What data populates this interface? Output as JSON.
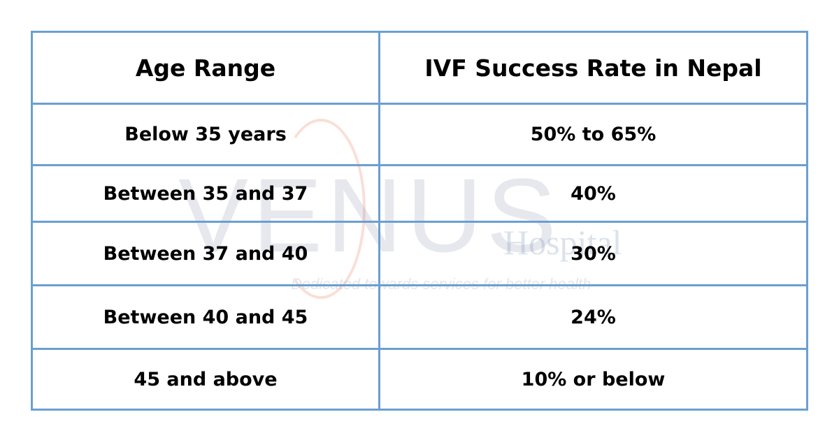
{
  "table": {
    "header": [
      "Age Range",
      "IVF Success Rate in Nepal"
    ],
    "rows": [
      [
        "Below 35 years",
        "50% to 65%"
      ],
      [
        "Between 35 and 37",
        "40%"
      ],
      [
        "Between 37 and 40",
        "30%"
      ],
      [
        "Between 40 and 45",
        "24%"
      ],
      [
        "45 and above",
        "10% or below"
      ]
    ]
  },
  "watermark": {
    "brand": "VENUS",
    "name": "Hospital",
    "tagline": "Dedicated towards services for better health"
  }
}
